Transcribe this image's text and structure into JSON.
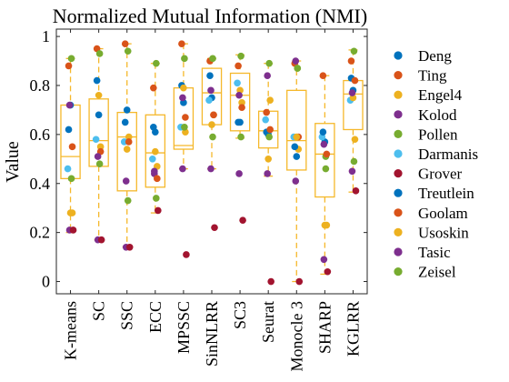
{
  "chart_data": {
    "type": "boxplot",
    "title": "Normalized Mutual Information (NMI)",
    "xlabel": "",
    "ylabel": "Value",
    "ylim": [
      -0.05,
      1.03
    ],
    "yticks": [
      0,
      0.2,
      0.4,
      0.6,
      0.8,
      1
    ],
    "grid": false,
    "legend_position": "right",
    "box_color": "#F5B82B",
    "categories": [
      "K-means",
      "SC",
      "SSC",
      "ECC",
      "MPSSC",
      "SinNLRR",
      "SC3",
      "Seurat",
      "Monocle 3",
      "SHARP",
      "KGLRR"
    ],
    "boxes": [
      {
        "q1": 0.42,
        "median": 0.51,
        "q3": 0.72,
        "lower_whisker": 0.2,
        "upper_whisker": 0.91
      },
      {
        "q1": 0.47,
        "median": 0.575,
        "q3": 0.745,
        "lower_whisker": 0.17,
        "upper_whisker": 0.95
      },
      {
        "q1": 0.37,
        "median": 0.59,
        "q3": 0.69,
        "lower_whisker": 0.14,
        "upper_whisker": 0.97
      },
      {
        "q1": 0.385,
        "median": 0.525,
        "q3": 0.68,
        "lower_whisker": 0.28,
        "upper_whisker": 0.89
      },
      {
        "q1": 0.54,
        "median": 0.555,
        "q3": 0.79,
        "lower_whisker": 0.46,
        "upper_whisker": 0.97
      },
      {
        "q1": 0.64,
        "median": 0.77,
        "q3": 0.87,
        "lower_whisker": 0.46,
        "upper_whisker": 0.91
      },
      {
        "q1": 0.615,
        "median": 0.76,
        "q3": 0.85,
        "lower_whisker": 0.585,
        "upper_whisker": 0.925
      },
      {
        "q1": 0.545,
        "median": 0.615,
        "q3": 0.695,
        "lower_whisker": 0.43,
        "upper_whisker": 0.89
      },
      {
        "q1": 0.455,
        "median": 0.575,
        "q3": 0.78,
        "lower_whisker": 0.0,
        "upper_whisker": 0.9
      },
      {
        "q1": 0.345,
        "median": 0.52,
        "q3": 0.645,
        "lower_whisker": 0.03,
        "upper_whisker": 0.84
      },
      {
        "q1": 0.62,
        "median": 0.765,
        "q3": 0.82,
        "lower_whisker": 0.365,
        "upper_whisker": 0.945
      }
    ],
    "series": [
      {
        "name": "Deng",
        "color": "#0072BD",
        "values": [
          0.72,
          0.68,
          0.7,
          0.61,
          0.73,
          0.75,
          0.65,
          0.6,
          0.51,
          0.57,
          0.78
        ]
      },
      {
        "name": "Ting",
        "color": "#D95319",
        "values": [
          0.88,
          0.95,
          0.97,
          0.79,
          0.97,
          0.9,
          0.88,
          0.69,
          0.89,
          0.84,
          0.9
        ]
      },
      {
        "name": "Engel4",
        "color": "#EDB120",
        "values": [
          0.28,
          0.55,
          0.59,
          0.47,
          0.61,
          0.68,
          0.73,
          0.74,
          0.54,
          0.23,
          0.58
        ]
      },
      {
        "name": "Kolod",
        "color": "#7E2F8E",
        "values": [
          0.21,
          0.17,
          0.14,
          0.44,
          0.46,
          0.46,
          0.44,
          0.84,
          0.9,
          0.09,
          0.45
        ]
      },
      {
        "name": "Pollen",
        "color": "#77AC30",
        "values": [
          0.91,
          0.93,
          0.94,
          0.89,
          0.91,
          0.91,
          0.92,
          0.89,
          0.87,
          0.51,
          0.94
        ]
      },
      {
        "name": "Darmanis",
        "color": "#4DBEEE",
        "values": [
          0.46,
          0.58,
          0.57,
          0.5,
          0.63,
          0.74,
          0.81,
          0.66,
          0.59,
          0.59,
          0.74
        ]
      },
      {
        "name": "Grover",
        "color": "#A2142F",
        "values": [
          0.21,
          0.17,
          0.14,
          0.29,
          0.11,
          0.22,
          0.25,
          0.0,
          0.0,
          0.04,
          0.37
        ]
      },
      {
        "name": "Treutlein",
        "color": "#0072BD",
        "values": [
          0.62,
          0.82,
          0.65,
          0.63,
          0.8,
          0.84,
          0.65,
          0.61,
          0.55,
          0.61,
          0.83
        ]
      },
      {
        "name": "Goolam",
        "color": "#D95319",
        "values": [
          0.55,
          0.53,
          0.57,
          0.42,
          0.67,
          0.68,
          0.71,
          0.62,
          0.59,
          0.52,
          0.82
        ]
      },
      {
        "name": "Usoskin",
        "color": "#EDB120",
        "values": [
          0.28,
          0.76,
          0.54,
          0.53,
          0.79,
          0.64,
          0.78,
          0.5,
          0.59,
          0.23,
          0.75
        ]
      },
      {
        "name": "Tasic",
        "color": "#7E2F8E",
        "values": [
          0.72,
          0.51,
          0.41,
          0.45,
          0.75,
          0.78,
          0.76,
          0.44,
          0.41,
          0.56,
          0.77
        ]
      },
      {
        "name": "Zeisel",
        "color": "#77AC30",
        "values": [
          0.42,
          0.48,
          0.33,
          0.34,
          0.63,
          0.59,
          0.59,
          0.59,
          0.87,
          0.46,
          0.49
        ]
      }
    ]
  }
}
